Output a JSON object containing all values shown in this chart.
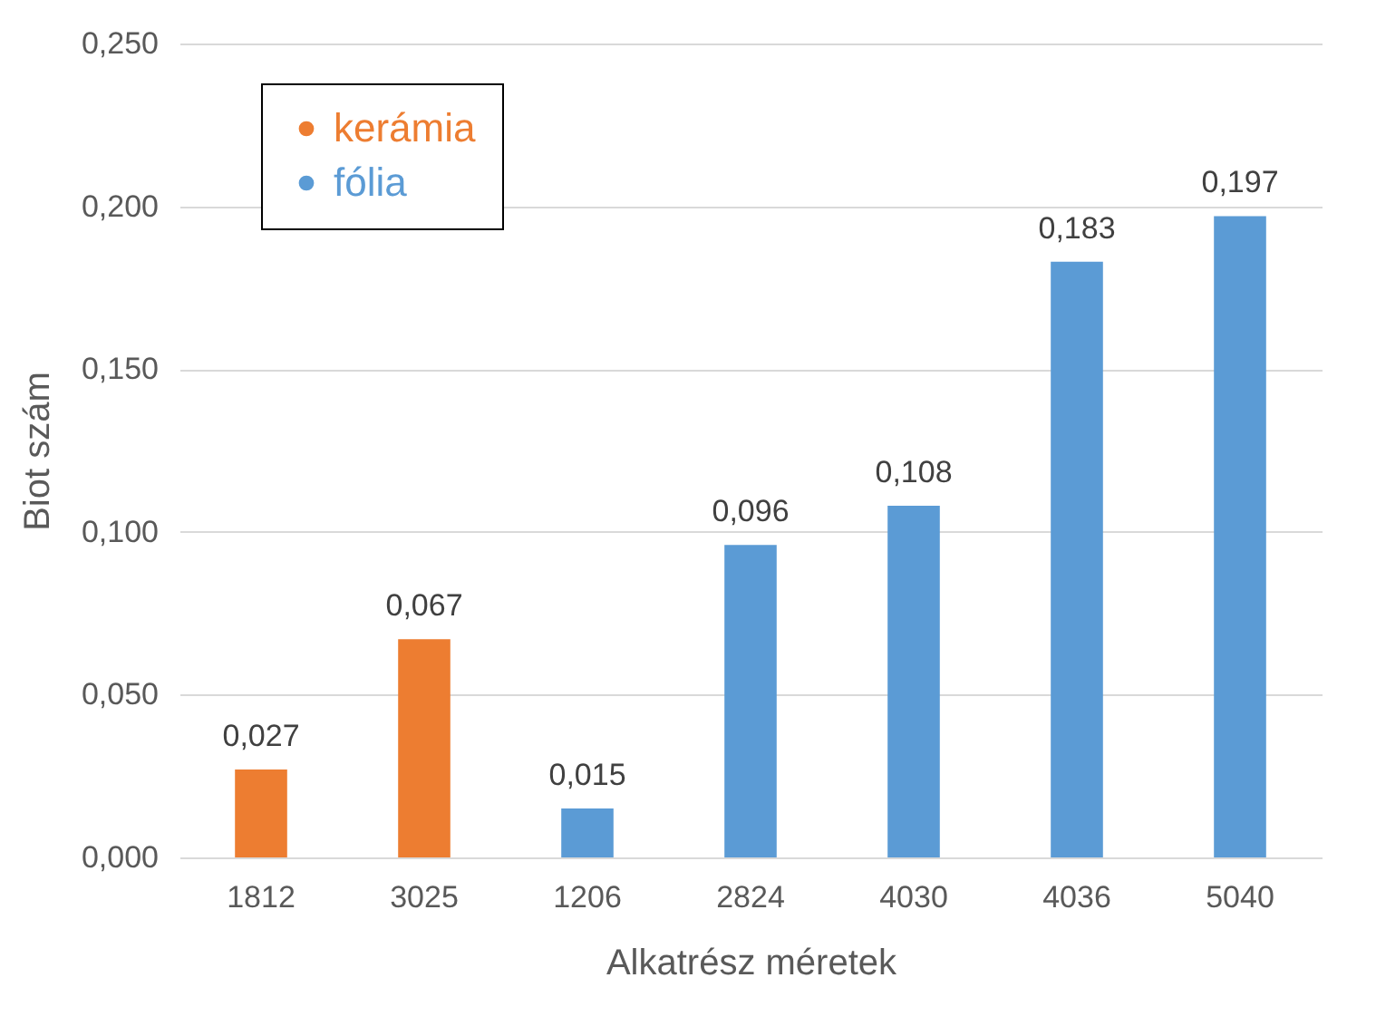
{
  "chart_data": {
    "type": "bar",
    "xlabel": "Alkatrész méretek",
    "ylabel": "Biot szám",
    "categories": [
      "1812",
      "3025",
      "1206",
      "2824",
      "4030",
      "4036",
      "5040"
    ],
    "series": [
      {
        "name": "kerámia",
        "color": "#ed7d31",
        "values": [
          0.027,
          0.067,
          null,
          null,
          null,
          null,
          null
        ],
        "value_labels": [
          "0,027",
          "0,067",
          null,
          null,
          null,
          null,
          null
        ]
      },
      {
        "name": "fólia",
        "color": "#5b9bd5",
        "values": [
          null,
          null,
          0.015,
          0.096,
          0.108,
          0.183,
          0.197
        ],
        "value_labels": [
          null,
          null,
          "0,015",
          "0,096",
          "0,108",
          "0,183",
          "0,197"
        ]
      }
    ],
    "ylim": [
      0,
      0.25
    ],
    "yticks": [
      {
        "value": 0,
        "label": "0,000"
      },
      {
        "value": 0.05,
        "label": "0,050"
      },
      {
        "value": 0.1,
        "label": "0,100"
      },
      {
        "value": 0.15,
        "label": "0,150"
      },
      {
        "value": 0.2,
        "label": "0,200"
      },
      {
        "value": 0.25,
        "label": "0,250"
      }
    ],
    "grid": "y",
    "legend": "top left"
  }
}
